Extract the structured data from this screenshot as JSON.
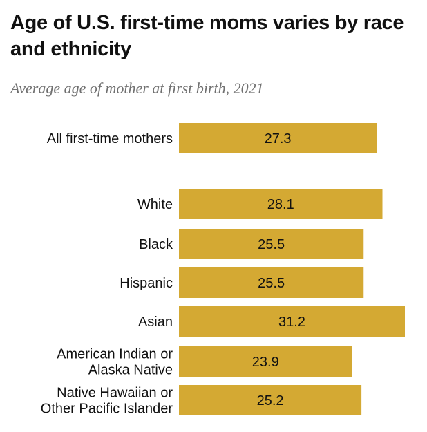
{
  "header": {
    "title": "Age of U.S. first-time moms varies by race and ethnicity",
    "subtitle": "Average age of mother at first birth, 2021"
  },
  "chart_data": {
    "type": "bar",
    "orientation": "horizontal",
    "title": "Age of U.S. first-time moms varies by race and ethnicity",
    "subtitle": "Average age of mother at first birth, 2021",
    "categories": [
      [
        "All first-time mothers"
      ],
      [
        "White"
      ],
      [
        "Black"
      ],
      [
        "Hispanic"
      ],
      [
        "Asian"
      ],
      [
        "American Indian or",
        "Alaska Native"
      ],
      [
        "Native Hawaiian or",
        "Other Pacific Islander"
      ]
    ],
    "values": [
      27.3,
      28.1,
      25.5,
      25.5,
      31.2,
      23.9,
      25.2
    ],
    "value_labels": [
      "27.3",
      "28.1",
      "25.5",
      "25.5",
      "31.2",
      "23.9",
      "25.2"
    ],
    "xlim": [
      0,
      31.2
    ],
    "bar_color": "#d4a933",
    "grid": false,
    "axes_visible": false,
    "legend": "none"
  }
}
